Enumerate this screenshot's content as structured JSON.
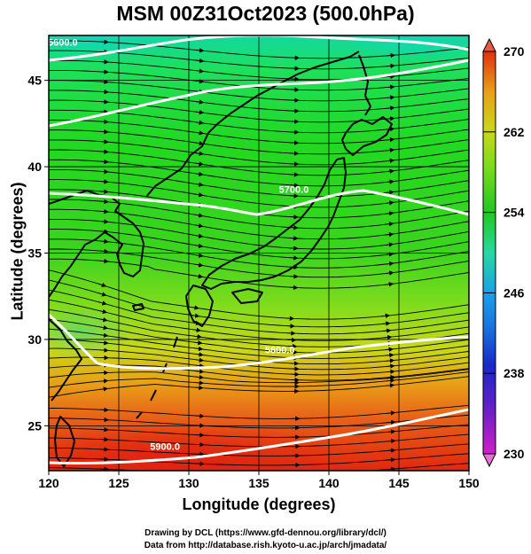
{
  "title": "MSM 00Z31Oct2023 (500.0hPa)",
  "xlabel": "Longitude (degrees)",
  "ylabel": "Latitude  (degrees)",
  "credits": [
    "Drawing by DCL (https://www.gfd-dennou.org/library/dcl/)",
    "Data from http://database.rish.kyoto-u.ac.jp/arch/jmadata/"
  ],
  "map": {
    "lon_range": [
      120,
      150
    ],
    "lat_range": [
      22.4,
      47.6
    ],
    "x_ticks": [
      "120",
      "125",
      "130",
      "135",
      "140",
      "145",
      "150"
    ],
    "y_ticks": [
      "25",
      "30",
      "35",
      "40",
      "45"
    ],
    "field": "temperature (K) with streamlines and geopotential height contours",
    "colorbar": {
      "min": 230,
      "max": 270,
      "tick_labels": [
        "230",
        "238",
        "246",
        "254",
        "262",
        "270"
      ],
      "colors": [
        "#d020c8",
        "#1828c8",
        "#1aa0e8",
        "#28d8a0",
        "#20c820",
        "#b4e01c",
        "#e8a018",
        "#e03010"
      ]
    },
    "contours": [
      {
        "label": "5600.0",
        "lon": 121,
        "lat": 47
      },
      {
        "label": "5700.0",
        "lon": 137.5,
        "lat": 38.5
      },
      {
        "label": "5800.0",
        "lon": 136.5,
        "lat": 29.2
      },
      {
        "label": "5900.0",
        "lon": 128.3,
        "lat": 23.6
      }
    ]
  }
}
